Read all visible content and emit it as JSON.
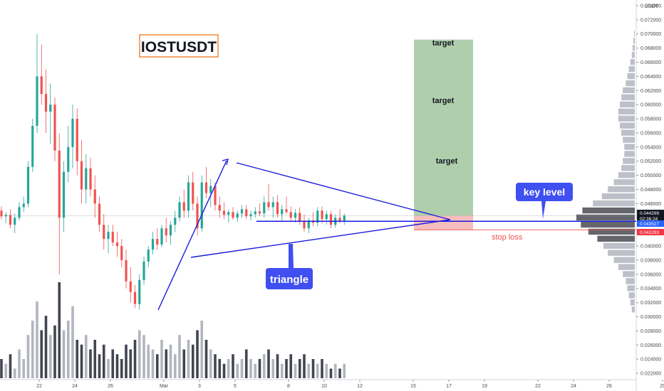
{
  "chart_data": {
    "type": "candlestick",
    "symbol_label": "IOSTUSDT",
    "currency_label": "USDT",
    "y_axis": {
      "range": [
        0.021,
        0.0745
      ],
      "ticks": [
        "0.074000",
        "0.072000",
        "0.070000",
        "0.068000",
        "0.066000",
        "0.064000",
        "0.062000",
        "0.060000",
        "0.058000",
        "0.056000",
        "0.054000",
        "0.052000",
        "0.050000",
        "0.048000",
        "0.046000",
        "0.044000",
        "0.042000",
        "0.040000",
        "0.038000",
        "0.036000",
        "0.034000",
        "0.032000",
        "0.030000",
        "0.028000",
        "0.026000",
        "0.024000",
        "0.022000"
      ]
    },
    "x_axis": {
      "ticks": [
        {
          "label": "22",
          "bar": 8
        },
        {
          "label": "24",
          "bar": 16
        },
        {
          "label": "26",
          "bar": 24
        },
        {
          "label": "Mar",
          "bar": 36
        },
        {
          "label": "3",
          "bar": 44
        },
        {
          "label": "5",
          "bar": 52
        },
        {
          "label": "8",
          "bar": 64
        },
        {
          "label": "10",
          "bar": 72
        },
        {
          "label": "12",
          "bar": 80
        },
        {
          "label": "15",
          "bar": 92
        },
        {
          "label": "17",
          "bar": 100
        },
        {
          "label": "19",
          "bar": 108
        },
        {
          "label": "22",
          "bar": 120
        },
        {
          "label": "24",
          "bar": 128
        },
        {
          "label": "26",
          "bar": 136
        },
        {
          "label": "29",
          "bar": 148
        }
      ]
    },
    "price_tags": [
      {
        "label": "0.044299",
        "sub": "02:36:24",
        "value": 0.044299,
        "color": "#131722"
      },
      {
        "label": "0.043527",
        "value": 0.043527,
        "color": "#2962ff"
      },
      {
        "label": "0.042293",
        "value": 0.042293,
        "color": "#f23645"
      }
    ],
    "annotations": {
      "title_box": "IOSTUSDT",
      "targets": [
        "target",
        "target",
        "target"
      ],
      "key_level": "key level",
      "triangle": "triangle",
      "stop_loss": "stop loss"
    },
    "levels": {
      "key_level": 0.0435,
      "stop_loss": 0.04229,
      "target_top": 0.0692,
      "entry": 0.0443
    },
    "colors": {
      "up": "#26a69a",
      "down": "#ef5350",
      "drawing": "#1a1adb",
      "target_zone": "#a5c9a3",
      "stop_zone": "#f4b6b6",
      "title_border": "#f0883e",
      "callout": "#3f4ff0"
    },
    "candles": [
      [
        0.045,
        0.0456,
        0.0438,
        0.0442
      ],
      [
        0.0442,
        0.0448,
        0.0432,
        0.0444
      ],
      [
        0.0444,
        0.0452,
        0.0425,
        0.043
      ],
      [
        0.043,
        0.0446,
        0.0418,
        0.044
      ],
      [
        0.044,
        0.0462,
        0.0436,
        0.0455
      ],
      [
        0.0455,
        0.047,
        0.0448,
        0.046
      ],
      [
        0.046,
        0.052,
        0.0455,
        0.0512
      ],
      [
        0.0512,
        0.058,
        0.0505,
        0.057
      ],
      [
        0.057,
        0.07,
        0.056,
        0.064
      ],
      [
        0.064,
        0.0685,
        0.06,
        0.0615
      ],
      [
        0.0615,
        0.065,
        0.056,
        0.059
      ],
      [
        0.059,
        0.063,
        0.0545,
        0.06
      ],
      [
        0.06,
        0.061,
        0.052,
        0.0535
      ],
      [
        0.0535,
        0.056,
        0.036,
        0.044
      ],
      [
        0.044,
        0.052,
        0.042,
        0.0505
      ],
      [
        0.0505,
        0.057,
        0.049,
        0.054
      ],
      [
        0.054,
        0.06,
        0.051,
        0.058
      ],
      [
        0.058,
        0.0595,
        0.05,
        0.052
      ],
      [
        0.052,
        0.055,
        0.046,
        0.048
      ],
      [
        0.048,
        0.053,
        0.046,
        0.051
      ],
      [
        0.051,
        0.0525,
        0.047,
        0.048
      ],
      [
        0.048,
        0.05,
        0.044,
        0.046
      ],
      [
        0.046,
        0.047,
        0.042,
        0.043
      ],
      [
        0.043,
        0.0445,
        0.0395,
        0.041
      ],
      [
        0.041,
        0.043,
        0.039,
        0.042
      ],
      [
        0.042,
        0.043,
        0.04,
        0.0405
      ],
      [
        0.0405,
        0.042,
        0.0385,
        0.04
      ],
      [
        0.04,
        0.041,
        0.037,
        0.038
      ],
      [
        0.038,
        0.0395,
        0.034,
        0.035
      ],
      [
        0.035,
        0.037,
        0.032,
        0.0335
      ],
      [
        0.0335,
        0.0345,
        0.0312,
        0.0318
      ],
      [
        0.0318,
        0.036,
        0.031,
        0.0352
      ],
      [
        0.0352,
        0.0385,
        0.0345,
        0.0378
      ],
      [
        0.0378,
        0.04,
        0.037,
        0.0395
      ],
      [
        0.0395,
        0.042,
        0.0388,
        0.041
      ],
      [
        0.041,
        0.0425,
        0.0395,
        0.0402
      ],
      [
        0.0402,
        0.043,
        0.0398,
        0.0425
      ],
      [
        0.0425,
        0.044,
        0.0405,
        0.0415
      ],
      [
        0.0415,
        0.0435,
        0.0402,
        0.043
      ],
      [
        0.043,
        0.045,
        0.042,
        0.044
      ],
      [
        0.044,
        0.047,
        0.0435,
        0.0462
      ],
      [
        0.0462,
        0.048,
        0.044,
        0.045
      ],
      [
        0.045,
        0.05,
        0.044,
        0.049
      ],
      [
        0.049,
        0.0505,
        0.045,
        0.046
      ],
      [
        0.046,
        0.047,
        0.0415,
        0.0425
      ],
      [
        0.0425,
        0.05,
        0.042,
        0.049
      ],
      [
        0.049,
        0.0512,
        0.0468,
        0.0475
      ],
      [
        0.0475,
        0.0495,
        0.0455,
        0.0485
      ],
      [
        0.0485,
        0.049,
        0.045,
        0.0458
      ],
      [
        0.0458,
        0.047,
        0.044,
        0.045
      ],
      [
        0.045,
        0.0462,
        0.0438,
        0.0444
      ],
      [
        0.0444,
        0.0452,
        0.0433,
        0.0448
      ],
      [
        0.0448,
        0.0455,
        0.0437,
        0.044
      ],
      [
        0.044,
        0.045,
        0.0434,
        0.0446
      ],
      [
        0.0446,
        0.0458,
        0.044,
        0.0452
      ],
      [
        0.0452,
        0.0458,
        0.0438,
        0.0442
      ],
      [
        0.0442,
        0.045,
        0.0436,
        0.0445
      ],
      [
        0.0445,
        0.0455,
        0.044,
        0.0449
      ],
      [
        0.0449,
        0.046,
        0.0442,
        0.0446
      ],
      [
        0.0446,
        0.047,
        0.044,
        0.0462
      ],
      [
        0.0462,
        0.0488,
        0.045,
        0.0455
      ],
      [
        0.0455,
        0.047,
        0.044,
        0.0462
      ],
      [
        0.0462,
        0.0472,
        0.044,
        0.0445
      ],
      [
        0.0445,
        0.0458,
        0.0436,
        0.0452
      ],
      [
        0.0452,
        0.047,
        0.0445,
        0.0448
      ],
      [
        0.0448,
        0.0456,
        0.0436,
        0.044
      ],
      [
        0.044,
        0.0452,
        0.0433,
        0.0447
      ],
      [
        0.0447,
        0.0455,
        0.043,
        0.0435
      ],
      [
        0.0435,
        0.0445,
        0.042,
        0.0425
      ],
      [
        0.0425,
        0.044,
        0.0418,
        0.0436
      ],
      [
        0.0436,
        0.0448,
        0.0428,
        0.0433
      ],
      [
        0.0433,
        0.0455,
        0.0428,
        0.045
      ],
      [
        0.045,
        0.0456,
        0.0432,
        0.0438
      ],
      [
        0.0438,
        0.045,
        0.043,
        0.0445
      ],
      [
        0.0445,
        0.045,
        0.0425,
        0.043
      ],
      [
        0.043,
        0.0445,
        0.0426,
        0.044
      ],
      [
        0.044,
        0.0452,
        0.0432,
        0.0436
      ],
      [
        0.0436,
        0.0446,
        0.043,
        0.0443
      ]
    ],
    "volumes": [
      4,
      3,
      5,
      2,
      6,
      4,
      9,
      12,
      16,
      10,
      13,
      9,
      11,
      20,
      10,
      12,
      15,
      8,
      7,
      9,
      6,
      8,
      5,
      7,
      4,
      6,
      5,
      4,
      7,
      6,
      8,
      10,
      9,
      7,
      6,
      5,
      8,
      6,
      7,
      5,
      9,
      6,
      8,
      7,
      10,
      12,
      8,
      6,
      5,
      4,
      3,
      4,
      5,
      3,
      4,
      6,
      4,
      3,
      4,
      5,
      6,
      4,
      5,
      3,
      4,
      5,
      3,
      4,
      5,
      3,
      4,
      3,
      4,
      3,
      2,
      3,
      2,
      3
    ],
    "volume_profile": {
      "bins": [
        0.022,
        0.023,
        0.024,
        0.025,
        0.026,
        0.027,
        0.028,
        0.029,
        0.03,
        0.031,
        0.032,
        0.033,
        0.034,
        0.035,
        0.036,
        0.037,
        0.038,
        0.039,
        0.04,
        0.041,
        0.042,
        0.043,
        0.044,
        0.045,
        0.046,
        0.047,
        0.048,
        0.049,
        0.05,
        0.051,
        0.052,
        0.053,
        0.054,
        0.055,
        0.056,
        0.057,
        0.058,
        0.059,
        0.06,
        0.061,
        0.062,
        0.063,
        0.064,
        0.065,
        0.066,
        0.067,
        0.068,
        0.069,
        0.07,
        0.071,
        0.072
      ],
      "sizes": [
        0,
        0,
        0,
        0,
        0,
        0,
        0,
        0,
        0,
        4,
        6,
        8,
        10,
        12,
        16,
        22,
        28,
        36,
        42,
        50,
        62,
        72,
        78,
        70,
        56,
        44,
        36,
        28,
        22,
        18,
        16,
        14,
        14,
        16,
        18,
        20,
        22,
        22,
        20,
        18,
        16,
        12,
        10,
        8,
        6,
        4,
        3,
        2,
        1,
        0,
        0
      ]
    }
  }
}
